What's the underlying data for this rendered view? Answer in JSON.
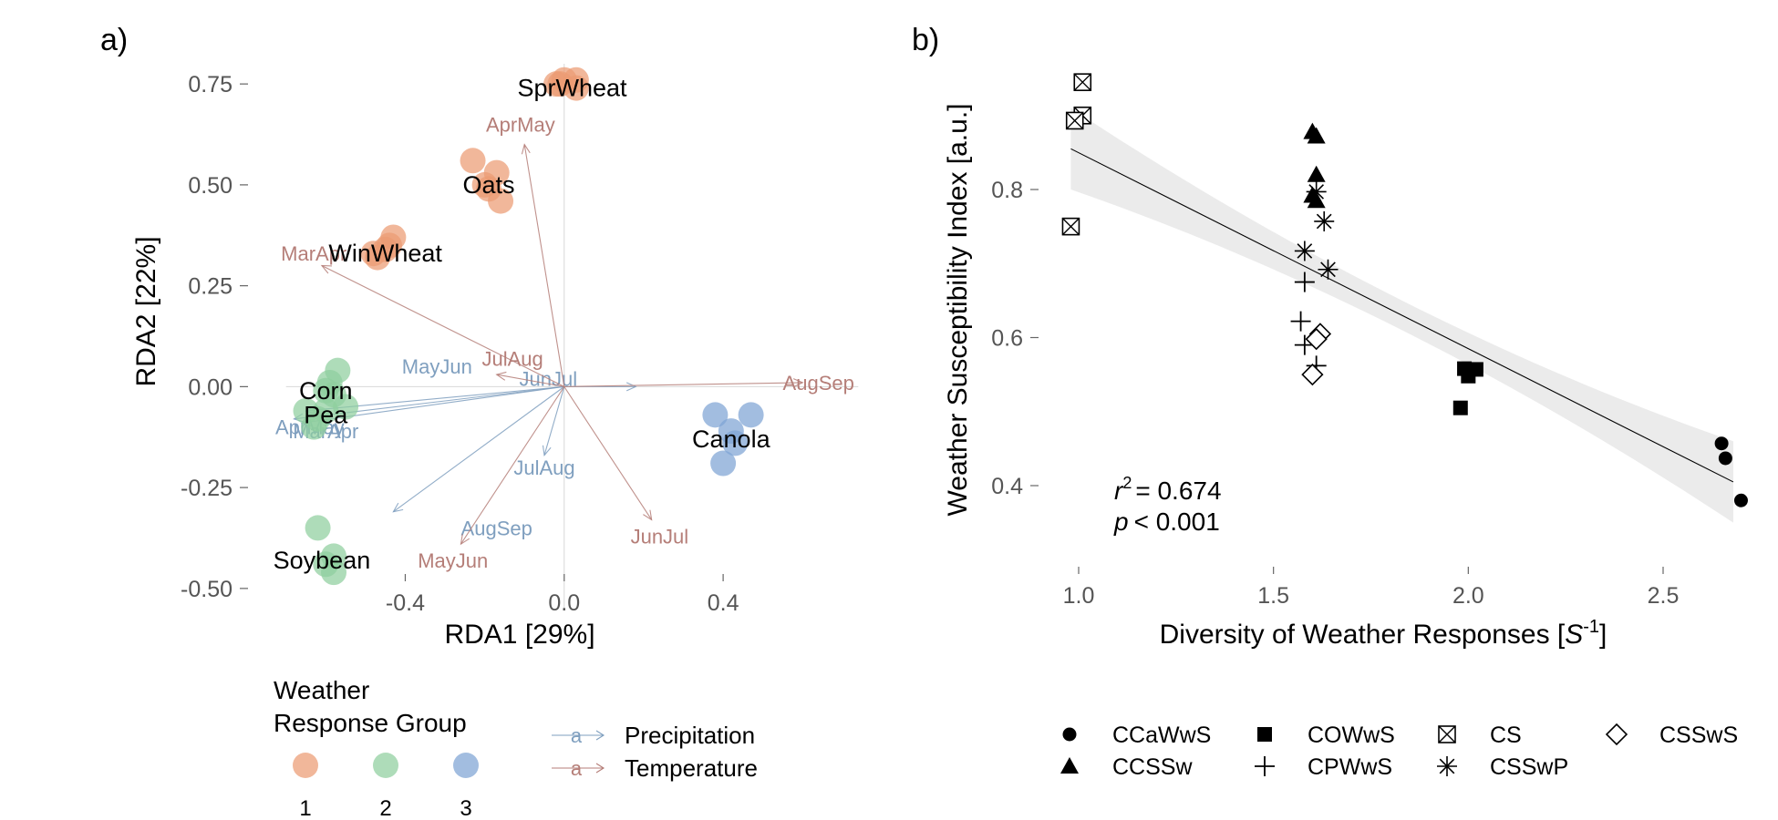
{
  "panel_labels": {
    "a": "a)",
    "b": "b)"
  },
  "chart_data": [
    {
      "type": "scatter",
      "panel": "a)",
      "xlabel": "RDA1 [29%]",
      "ylabel": "RDA2 [22%]",
      "xlim": [
        -0.72,
        0.76
      ],
      "ylim": [
        -0.55,
        0.8
      ],
      "xticks": [
        -0.4,
        0.0,
        0.4
      ],
      "xtick_labels": [
        "-0.4",
        "0.0",
        "0.4"
      ],
      "yticks": [
        -0.5,
        -0.25,
        0.0,
        0.25,
        0.5,
        0.75
      ],
      "ytick_labels": [
        "-0.50",
        "-0.25",
        "0.00",
        "0.25",
        "0.50",
        "0.75"
      ],
      "grid": false,
      "group_colors": {
        "1": "#ec9b73",
        "2": "#8fcf9e",
        "3": "#7ea3d4"
      },
      "arrow_colors": {
        "Precipitation": "#7f9fbf",
        "Temperature": "#b57e78"
      },
      "points": [
        {
          "group": "1",
          "x": 0.0,
          "y": 0.76
        },
        {
          "group": "1",
          "x": 0.03,
          "y": 0.76
        },
        {
          "group": "1",
          "x": -0.01,
          "y": 0.75
        },
        {
          "group": "1",
          "x": 0.03,
          "y": 0.74
        },
        {
          "group": "1",
          "x": -0.02,
          "y": 0.75
        },
        {
          "group": "1",
          "x": -0.23,
          "y": 0.56
        },
        {
          "group": "1",
          "x": -0.17,
          "y": 0.53
        },
        {
          "group": "1",
          "x": -0.19,
          "y": 0.49
        },
        {
          "group": "1",
          "x": -0.16,
          "y": 0.46
        },
        {
          "group": "1",
          "x": -0.2,
          "y": 0.5
        },
        {
          "group": "1",
          "x": -0.43,
          "y": 0.37
        },
        {
          "group": "1",
          "x": -0.47,
          "y": 0.32
        },
        {
          "group": "1",
          "x": -0.45,
          "y": 0.34
        },
        {
          "group": "1",
          "x": -0.48,
          "y": 0.33
        },
        {
          "group": "1",
          "x": -0.44,
          "y": 0.35
        },
        {
          "group": "2",
          "x": -0.57,
          "y": 0.04
        },
        {
          "group": "2",
          "x": -0.59,
          "y": 0.01
        },
        {
          "group": "2",
          "x": -0.6,
          "y": -0.01
        },
        {
          "group": "2",
          "x": -0.58,
          "y": -0.02
        },
        {
          "group": "2",
          "x": -0.55,
          "y": -0.05
        },
        {
          "group": "2",
          "x": -0.65,
          "y": -0.06
        },
        {
          "group": "2",
          "x": -0.62,
          "y": -0.08
        },
        {
          "group": "2",
          "x": -0.6,
          "y": -0.06
        },
        {
          "group": "2",
          "x": -0.63,
          "y": -0.1
        },
        {
          "group": "2",
          "x": -0.62,
          "y": -0.35
        },
        {
          "group": "2",
          "x": -0.58,
          "y": -0.42
        },
        {
          "group": "2",
          "x": -0.58,
          "y": -0.46
        },
        {
          "group": "2",
          "x": -0.6,
          "y": -0.44
        },
        {
          "group": "3",
          "x": 0.38,
          "y": -0.07
        },
        {
          "group": "3",
          "x": 0.47,
          "y": -0.07
        },
        {
          "group": "3",
          "x": 0.43,
          "y": -0.14
        },
        {
          "group": "3",
          "x": 0.4,
          "y": -0.19
        },
        {
          "group": "3",
          "x": 0.42,
          "y": -0.11
        }
      ],
      "point_labels": [
        {
          "text": "SprWheat",
          "x": 0.02,
          "y": 0.74
        },
        {
          "text": "Oats",
          "x": -0.19,
          "y": 0.5
        },
        {
          "text": "WinWheat",
          "x": -0.45,
          "y": 0.33
        },
        {
          "text": "Corn",
          "x": -0.6,
          "y": -0.01
        },
        {
          "text": "Pea",
          "x": -0.6,
          "y": -0.07
        },
        {
          "text": "Canola",
          "x": 0.42,
          "y": -0.13
        },
        {
          "text": "Soybean",
          "x": -0.61,
          "y": -0.43
        }
      ],
      "arrows": [
        {
          "variable": "Precipitation",
          "label": "MayJun",
          "x": -0.65,
          "y": -0.06,
          "lx": -0.32,
          "ly": 0.05
        },
        {
          "variable": "Precipitation",
          "label": "JunJul",
          "x": 0.18,
          "y": 0.0,
          "lx": -0.04,
          "ly": 0.02
        },
        {
          "variable": "Precipitation",
          "label": "AprMay",
          "x": -0.68,
          "y": -0.08,
          "lx": -0.64,
          "ly": -0.1
        },
        {
          "variable": "Precipitation",
          "label": "MarApr",
          "x": -0.66,
          "y": -0.09,
          "lx": -0.6,
          "ly": -0.11
        },
        {
          "variable": "Precipitation",
          "label": "JulAug",
          "x": -0.05,
          "y": -0.17,
          "lx": -0.05,
          "ly": -0.2
        },
        {
          "variable": "Precipitation",
          "label": "AugSep",
          "x": -0.43,
          "y": -0.31,
          "lx": -0.17,
          "ly": -0.35
        },
        {
          "variable": "Temperature",
          "label": "AprMay",
          "x": -0.1,
          "y": 0.6,
          "lx": -0.11,
          "ly": 0.65
        },
        {
          "variable": "Temperature",
          "label": "MarApr",
          "x": -0.61,
          "y": 0.3,
          "lx": -0.63,
          "ly": 0.33
        },
        {
          "variable": "Temperature",
          "label": "JulAug",
          "x": -0.17,
          "y": 0.03,
          "lx": -0.13,
          "ly": 0.07
        },
        {
          "variable": "Temperature",
          "label": "AugSep",
          "x": 0.6,
          "y": 0.01,
          "lx": 0.64,
          "ly": 0.01
        },
        {
          "variable": "Temperature",
          "label": "JunJul",
          "x": 0.22,
          "y": -0.33,
          "lx": 0.24,
          "ly": -0.37
        },
        {
          "variable": "Temperature",
          "label": "MayJun",
          "x": -0.26,
          "y": -0.39,
          "lx": -0.28,
          "ly": -0.43
        }
      ],
      "legend": {
        "group_title_line1": "Weather",
        "group_title_line2": "Response Group",
        "groups": [
          "1",
          "2",
          "3"
        ],
        "arrow_key_glyph": "a",
        "arrow_items": [
          "Precipitation",
          "Temperature"
        ],
        "placement": "bottom"
      }
    },
    {
      "type": "scatter",
      "panel": "b)",
      "xlabel_main": "Diversity of Weather Responses [",
      "xlabel_var": "S",
      "xlabel_sup": "-1",
      "xlabel_end": "]",
      "ylabel": "Weather Susceptibility Index [a.u.]",
      "xlim": [
        0.9,
        2.8
      ],
      "ylim": [
        0.3,
        0.95
      ],
      "xticks": [
        1.0,
        1.5,
        2.0,
        2.5
      ],
      "xtick_labels": [
        "1.0",
        "1.5",
        "2.0",
        "2.5"
      ],
      "yticks": [
        0.4,
        0.6,
        0.8
      ],
      "ytick_labels": [
        "0.4",
        "0.6",
        "0.8"
      ],
      "grid": false,
      "regression": {
        "x": [
          0.98,
          2.68
        ],
        "y": [
          0.855,
          0.405
        ],
        "ci_halfwidth_ends": 0.055,
        "ci_halfwidth_mid": 0.02
      },
      "stats": {
        "r_label": "r",
        "r_sup": "2",
        "r_value": "= 0.674",
        "p_label": "p",
        "p_value": "< 0.001"
      },
      "series": [
        {
          "name": "CCaWwS",
          "marker": "circle",
          "points": [
            [
              2.65,
              0.457
            ],
            [
              2.66,
              0.437
            ],
            [
              2.7,
              0.38
            ]
          ]
        },
        {
          "name": "CCSSw",
          "marker": "triangle",
          "points": [
            [
              1.6,
              0.878
            ],
            [
              1.61,
              0.872
            ],
            [
              1.61,
              0.82
            ],
            [
              1.6,
              0.792
            ],
            [
              1.61,
              0.785
            ]
          ]
        },
        {
          "name": "COWwS",
          "marker": "square",
          "points": [
            [
              1.99,
              0.558
            ],
            [
              2.02,
              0.557
            ],
            [
              2.0,
              0.548
            ],
            [
              1.98,
              0.505
            ]
          ]
        },
        {
          "name": "CPWwS",
          "marker": "plus",
          "points": [
            [
              1.58,
              0.675
            ],
            [
              1.57,
              0.622
            ],
            [
              1.58,
              0.59
            ],
            [
              1.61,
              0.562
            ]
          ]
        },
        {
          "name": "CS",
          "marker": "squarex",
          "points": [
            [
              1.01,
              0.945
            ],
            [
              1.01,
              0.9
            ],
            [
              0.99,
              0.893
            ],
            [
              0.98,
              0.75
            ]
          ]
        },
        {
          "name": "CSSwP",
          "marker": "asterisk",
          "points": [
            [
              1.61,
              0.797
            ],
            [
              1.63,
              0.757
            ],
            [
              1.58,
              0.717
            ],
            [
              1.64,
              0.692
            ]
          ]
        },
        {
          "name": "CSSwS",
          "marker": "diamond",
          "points": [
            [
              1.62,
              0.605
            ],
            [
              1.61,
              0.598
            ],
            [
              1.6,
              0.55
            ]
          ]
        }
      ],
      "legend_order": [
        "CCaWwS",
        "COWwS",
        "CS",
        "CSSwS",
        "CCSSw",
        "CPWwS",
        "CSSwP"
      ],
      "legend_placement": "bottom"
    }
  ]
}
